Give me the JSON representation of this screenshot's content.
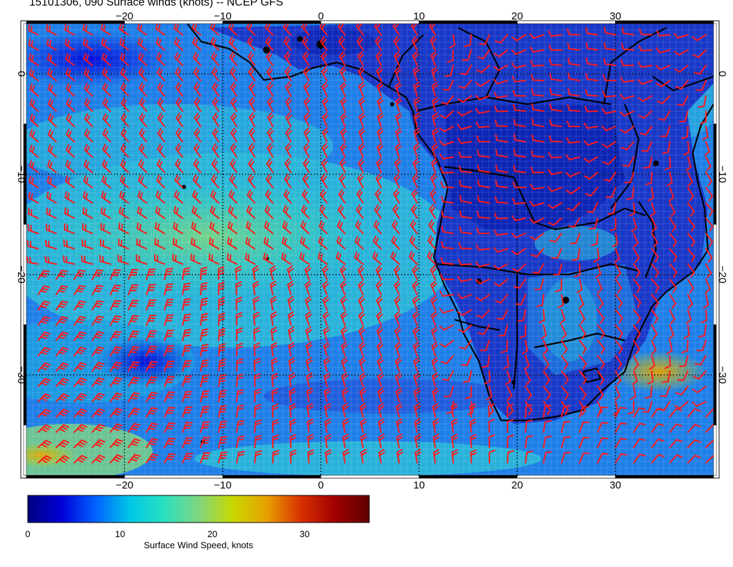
{
  "title": "15101306, 090 Surface winds (knots) -- NCEP GFS",
  "map": {
    "lon_range": [
      -30,
      40
    ],
    "lat_range": [
      -40,
      5
    ],
    "lon_ticks": [
      {
        "value": -20,
        "label": "−20"
      },
      {
        "value": -10,
        "label": "−10"
      },
      {
        "value": 0,
        "label": "0"
      },
      {
        "value": 10,
        "label": "10"
      },
      {
        "value": 20,
        "label": "20"
      },
      {
        "value": 30,
        "label": "30"
      }
    ],
    "lat_ticks": [
      {
        "value": 0,
        "label": "0"
      },
      {
        "value": -10,
        "label": "−10"
      },
      {
        "value": -20,
        "label": "−20"
      },
      {
        "value": -30,
        "label": "−30"
      }
    ],
    "grid": true,
    "colors": {
      "land_outline": "#000000",
      "wind_barb": "#ff1a1a",
      "grid": "#000000"
    }
  },
  "colorbar": {
    "label": "Surface Wind Speed, knots",
    "min": 0,
    "max": 37,
    "ticks": [
      {
        "value": 0,
        "label": "0"
      },
      {
        "value": 10,
        "label": "10"
      },
      {
        "value": 20,
        "label": "20"
      },
      {
        "value": 30,
        "label": "30"
      }
    ],
    "stops": [
      "#00007f",
      "#0000d8",
      "#0064ff",
      "#00c8e6",
      "#2ae0c0",
      "#7fd67f",
      "#c8d800",
      "#e8a000",
      "#d83000",
      "#a00000",
      "#600000"
    ]
  }
}
